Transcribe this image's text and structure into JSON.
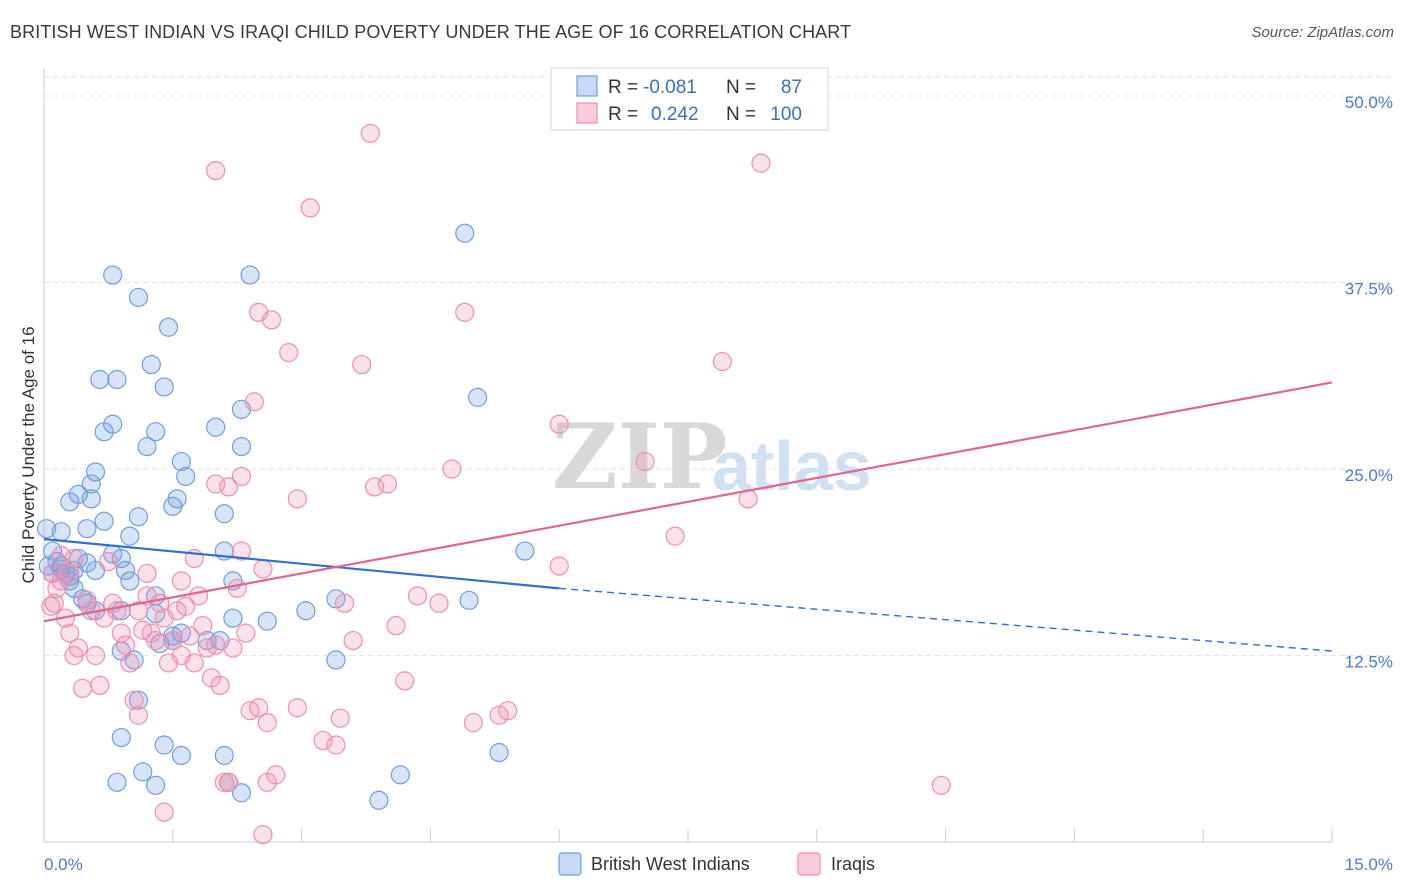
{
  "title": "BRITISH WEST INDIAN VS IRAQI CHILD POVERTY UNDER THE AGE OF 16 CORRELATION CHART",
  "source": "Source: ZipAtlas.com",
  "watermark": {
    "zip": "ZIP",
    "atlas": "atlas"
  },
  "colors": {
    "blue": "#6f9ee0",
    "pink": "#ee8fb0",
    "blue_line": "#2e6fd0",
    "pink_line": "#e0658f"
  },
  "legend": {
    "rows": [
      {
        "r_label": "R =",
        "r_value": "-0.081",
        "n_label": "N =",
        "n_value": "87"
      },
      {
        "r_label": "R =",
        "r_value": "0.242",
        "n_label": "N =",
        "n_value": "100"
      }
    ]
  },
  "chart_data": {
    "type": "scatter",
    "title": "BRITISH WEST INDIAN VS IRAQI CHILD POVERTY UNDER THE AGE OF 16 CORRELATION CHART",
    "xlabel": "",
    "ylabel": "Child Poverty Under the Age of 16",
    "xlim": [
      0,
      15
    ],
    "ylim": [
      0,
      50
    ],
    "x_tick_labels": [
      "0.0%",
      "15.0%"
    ],
    "y_ticks": [
      12.5,
      25.0,
      37.5,
      50.0
    ],
    "y_tick_labels": [
      "12.5%",
      "25.0%",
      "37.5%",
      "50.0%"
    ],
    "legend_position": "bottom-center",
    "series": [
      {
        "name": "British West Indians",
        "R": -0.081,
        "N": 87,
        "trend": {
          "x": [
            0,
            6.0
          ],
          "y": [
            20.3,
            17.0
          ],
          "dashed_to": [
            15.0,
            12.8
          ]
        },
        "points": [
          [
            0.03,
            21
          ],
          [
            0.2,
            20.8
          ],
          [
            0.1,
            19.5
          ],
          [
            0.15,
            18.8
          ],
          [
            0.2,
            18.5
          ],
          [
            0.25,
            18.0
          ],
          [
            0.3,
            17.8
          ],
          [
            0.05,
            18.5
          ],
          [
            0.1,
            18.0
          ],
          [
            0.35,
            18.2
          ],
          [
            0.4,
            19.0
          ],
          [
            0.5,
            18.7
          ],
          [
            0.6,
            18.2
          ],
          [
            0.8,
            19.3
          ],
          [
            0.9,
            19.0
          ],
          [
            0.95,
            18.2
          ],
          [
            1.0,
            17.5
          ],
          [
            0.3,
            22.8
          ],
          [
            0.4,
            23.3
          ],
          [
            0.55,
            23.0
          ],
          [
            0.7,
            21.5
          ],
          [
            1.1,
            21.8
          ],
          [
            0.5,
            21.0
          ],
          [
            0.35,
            17.0
          ],
          [
            0.45,
            16.3
          ],
          [
            0.5,
            16.0
          ],
          [
            0.6,
            15.5
          ],
          [
            0.9,
            15.5
          ],
          [
            1.3,
            15.3
          ],
          [
            1.3,
            16.5
          ],
          [
            1.5,
            13.5
          ],
          [
            1.5,
            13.8
          ],
          [
            1.6,
            14.0
          ],
          [
            1.9,
            13.5
          ],
          [
            2.05,
            13.5
          ],
          [
            2.2,
            15.0
          ],
          [
            2.1,
            19.5
          ],
          [
            2.2,
            17.5
          ],
          [
            2.1,
            22.0
          ],
          [
            2.3,
            26.5
          ],
          [
            2.3,
            29.0
          ],
          [
            2.0,
            27.8
          ],
          [
            1.6,
            25.5
          ],
          [
            1.65,
            24.5
          ],
          [
            1.55,
            23.0
          ],
          [
            1.3,
            27.5
          ],
          [
            1.4,
            30.5
          ],
          [
            1.45,
            34.5
          ],
          [
            1.25,
            32.0
          ],
          [
            1.1,
            36.5
          ],
          [
            0.8,
            38.0
          ],
          [
            0.65,
            31.0
          ],
          [
            0.85,
            31.0
          ],
          [
            0.8,
            28.0
          ],
          [
            0.7,
            27.5
          ],
          [
            0.6,
            24.8
          ],
          [
            0.55,
            24.0
          ],
          [
            1.2,
            26.5
          ],
          [
            1.35,
            13.3
          ],
          [
            0.9,
            12.8
          ],
          [
            1.05,
            12.2
          ],
          [
            1.1,
            9.5
          ],
          [
            0.9,
            7.0
          ],
          [
            1.4,
            6.5
          ],
          [
            1.6,
            5.8
          ],
          [
            2.1,
            5.8
          ],
          [
            2.3,
            3.3
          ],
          [
            2.15,
            4.0
          ],
          [
            0.85,
            4.0
          ],
          [
            1.15,
            4.7
          ],
          [
            1.3,
            3.8
          ],
          [
            2.4,
            38.0
          ],
          [
            2.6,
            14.8
          ],
          [
            3.05,
            15.5
          ],
          [
            3.4,
            12.2
          ],
          [
            3.4,
            16.3
          ],
          [
            3.9,
            2.8
          ],
          [
            4.15,
            4.5
          ],
          [
            4.95,
            16.2
          ],
          [
            5.05,
            29.8
          ],
          [
            4.9,
            40.8
          ],
          [
            5.3,
            6.0
          ],
          [
            5.6,
            19.5
          ],
          [
            1.5,
            22.5
          ],
          [
            1.0,
            20.5
          ],
          [
            0.3,
            17.5
          ],
          [
            0.2,
            18.3
          ]
        ]
      },
      {
        "name": "Iraqis",
        "R": 0.242,
        "N": 100,
        "trend": {
          "x": [
            0,
            15.0
          ],
          "y": [
            14.8,
            30.8
          ]
        },
        "points": [
          [
            0.1,
            18.0
          ],
          [
            0.15,
            17.0
          ],
          [
            0.2,
            17.5
          ],
          [
            0.3,
            18.0
          ],
          [
            0.2,
            19.2
          ],
          [
            0.35,
            19.0
          ],
          [
            0.12,
            16.0
          ],
          [
            0.25,
            15.0
          ],
          [
            0.3,
            14.0
          ],
          [
            0.35,
            12.5
          ],
          [
            0.4,
            13.0
          ],
          [
            0.45,
            10.3
          ],
          [
            0.5,
            16.2
          ],
          [
            0.55,
            15.5
          ],
          [
            0.6,
            12.5
          ],
          [
            0.65,
            10.5
          ],
          [
            0.7,
            15.0
          ],
          [
            0.75,
            18.8
          ],
          [
            0.8,
            16.0
          ],
          [
            0.85,
            15.5
          ],
          [
            0.9,
            14.0
          ],
          [
            0.95,
            13.2
          ],
          [
            1.0,
            12.0
          ],
          [
            1.05,
            9.5
          ],
          [
            1.1,
            8.5
          ],
          [
            1.1,
            15.5
          ],
          [
            1.15,
            14.2
          ],
          [
            1.2,
            16.5
          ],
          [
            1.25,
            14.0
          ],
          [
            1.3,
            13.5
          ],
          [
            1.35,
            16.0
          ],
          [
            1.4,
            15.0
          ],
          [
            1.45,
            12.0
          ],
          [
            1.5,
            13.5
          ],
          [
            1.55,
            15.5
          ],
          [
            1.6,
            12.5
          ],
          [
            1.65,
            15.8
          ],
          [
            1.7,
            13.8
          ],
          [
            1.75,
            12.0
          ],
          [
            1.8,
            16.5
          ],
          [
            1.85,
            14.5
          ],
          [
            1.9,
            13.0
          ],
          [
            1.95,
            11.0
          ],
          [
            2.0,
            13.2
          ],
          [
            2.05,
            10.5
          ],
          [
            2.1,
            4.0
          ],
          [
            2.15,
            4.0
          ],
          [
            2.2,
            13.0
          ],
          [
            2.25,
            17.0
          ],
          [
            2.3,
            19.5
          ],
          [
            2.35,
            14.0
          ],
          [
            2.4,
            8.8
          ],
          [
            2.5,
            9.0
          ],
          [
            2.6,
            8.0
          ],
          [
            2.6,
            4.0
          ],
          [
            2.7,
            4.5
          ],
          [
            2.55,
            0.5
          ],
          [
            1.4,
            2.0
          ],
          [
            2.0,
            24.0
          ],
          [
            2.15,
            23.8
          ],
          [
            2.3,
            24.5
          ],
          [
            2.45,
            29.5
          ],
          [
            2.5,
            35.5
          ],
          [
            2.55,
            18.3
          ],
          [
            2.65,
            35.0
          ],
          [
            2.85,
            32.8
          ],
          [
            2.95,
            23.0
          ],
          [
            2.95,
            9.0
          ],
          [
            3.1,
            42.5
          ],
          [
            3.25,
            6.8
          ],
          [
            3.4,
            6.5
          ],
          [
            3.45,
            8.3
          ],
          [
            3.5,
            16.0
          ],
          [
            3.6,
            13.5
          ],
          [
            3.7,
            32.0
          ],
          [
            3.85,
            23.8
          ],
          [
            4.0,
            24.0
          ],
          [
            3.8,
            47.5
          ],
          [
            4.1,
            14.5
          ],
          [
            4.2,
            10.8
          ],
          [
            4.35,
            16.5
          ],
          [
            4.6,
            16.0
          ],
          [
            4.75,
            25.0
          ],
          [
            4.9,
            35.5
          ],
          [
            5.0,
            8.0
          ],
          [
            5.3,
            8.5
          ],
          [
            5.4,
            8.8
          ],
          [
            6.0,
            28.0
          ],
          [
            6.0,
            18.5
          ],
          [
            7.0,
            25.5
          ],
          [
            7.35,
            20.5
          ],
          [
            7.9,
            32.2
          ],
          [
            8.2,
            23.0
          ],
          [
            8.35,
            45.5
          ],
          [
            1.2,
            18.0
          ],
          [
            1.6,
            17.5
          ],
          [
            1.75,
            19.0
          ],
          [
            2.0,
            45.0
          ],
          [
            0.08,
            15.8
          ],
          [
            10.45,
            3.8
          ]
        ]
      }
    ]
  }
}
